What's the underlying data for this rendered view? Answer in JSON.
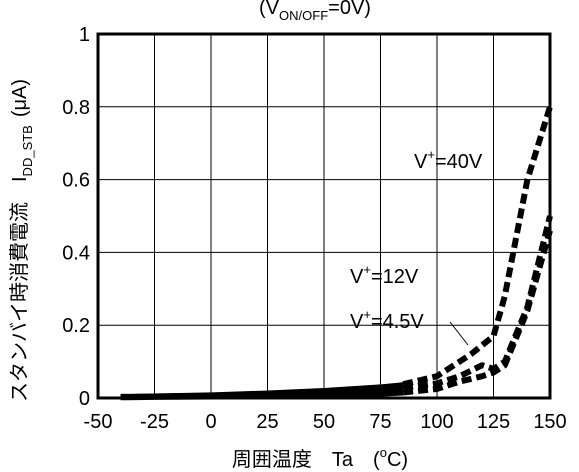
{
  "chart_data": {
    "type": "line",
    "title": {
      "open": "(V",
      "sub": "ON/OFF",
      "close": "=0V)"
    },
    "xlabel": {
      "main": "周囲温度　Ta　(",
      "sup": "o",
      "close": "C)"
    },
    "ylabel": {
      "main": "スタンバイ時消費電流　I",
      "sub": "DD_STB",
      "unit": "(μA)"
    },
    "x_ticks": [
      "-50",
      "-25",
      "0",
      "25",
      "50",
      "75",
      "100",
      "125",
      "150"
    ],
    "y_ticks": [
      "0",
      "0.2",
      "0.4",
      "0.6",
      "0.8",
      "1"
    ],
    "xlim": [
      -50,
      150
    ],
    "ylim": [
      0,
      1
    ],
    "grid": true,
    "series": [
      {
        "label": {
          "pre": "V",
          "sup": "+",
          "post": "=40V"
        },
        "points": [
          [
            -40,
            0.005
          ],
          [
            -25,
            0.007
          ],
          [
            0,
            0.01
          ],
          [
            25,
            0.015
          ],
          [
            50,
            0.022
          ],
          [
            75,
            0.032
          ],
          [
            85,
            0.038
          ],
          [
            100,
            0.06
          ],
          [
            115,
            0.12
          ],
          [
            125,
            0.17
          ],
          [
            130,
            0.28
          ],
          [
            140,
            0.6
          ],
          [
            150,
            0.8
          ]
        ]
      },
      {
        "label": {
          "pre": "V",
          "sup": "+",
          "post": "=12V"
        },
        "points": [
          [
            -40,
            0.003
          ],
          [
            -25,
            0.004
          ],
          [
            0,
            0.006
          ],
          [
            25,
            0.009
          ],
          [
            50,
            0.014
          ],
          [
            75,
            0.022
          ],
          [
            85,
            0.028
          ],
          [
            100,
            0.04
          ],
          [
            110,
            0.06
          ],
          [
            120,
            0.09
          ],
          [
            125,
            0.08
          ],
          [
            130,
            0.1
          ],
          [
            140,
            0.25
          ],
          [
            150,
            0.5
          ]
        ]
      },
      {
        "label": {
          "pre": "V",
          "sup": "+",
          "post": "=4.5V"
        },
        "points": [
          [
            -40,
            0.002
          ],
          [
            -25,
            0.003
          ],
          [
            0,
            0.004
          ],
          [
            25,
            0.005
          ],
          [
            50,
            0.008
          ],
          [
            75,
            0.012
          ],
          [
            85,
            0.015
          ],
          [
            100,
            0.025
          ],
          [
            110,
            0.045
          ],
          [
            120,
            0.06
          ],
          [
            125,
            0.07
          ],
          [
            130,
            0.09
          ],
          [
            140,
            0.24
          ],
          [
            150,
            0.46
          ]
        ]
      }
    ]
  }
}
